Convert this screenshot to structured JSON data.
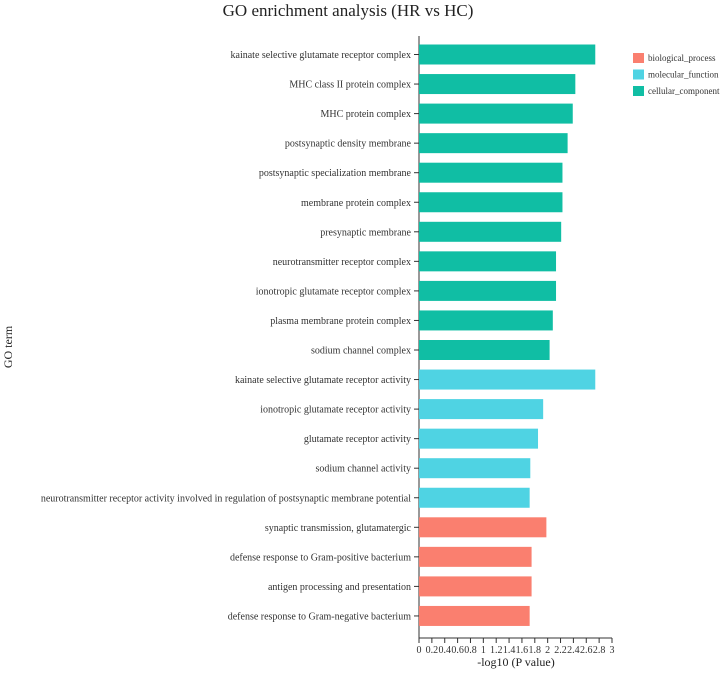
{
  "chart_data": {
    "type": "bar",
    "orientation": "horizontal",
    "title": "GO enrichment analysis (HR vs HC)",
    "xlabel": "-log10 (P value)",
    "ylabel": "GO term",
    "xlim": [
      0,
      3
    ],
    "xticks": [
      0,
      0.2,
      0.4,
      0.6,
      0.8,
      1,
      1.2,
      1.4,
      1.6,
      1.8,
      2,
      2.2,
      2.4,
      2.6,
      2.8,
      3
    ],
    "xtick_labels": [
      "0",
      "0.2",
      "0.4",
      "0.6",
      "0.8",
      "1",
      "1.2",
      "1.4",
      "1.6",
      "1.8",
      "2",
      "2.2",
      "2.4",
      "2.6",
      "2.8",
      "3"
    ],
    "grid": false,
    "legend_position": "top-right",
    "categories": [
      "kainate selective glutamate receptor complex",
      "MHC class II protein complex",
      "MHC protein complex",
      "postsynaptic density membrane",
      "postsynaptic specialization membrane",
      "membrane protein complex",
      "presynaptic membrane",
      "neurotransmitter receptor complex",
      "ionotropic glutamate receptor complex",
      "plasma membrane protein complex",
      "sodium channel complex",
      "kainate selective glutamate receptor activity",
      "ionotropic glutamate receptor activity",
      "glutamate receptor activity",
      "sodium channel activity",
      "neurotransmitter receptor activity involved in regulation of postsynaptic membrane potential",
      "synaptic transmission, glutamatergic",
      "defense response to Gram-positive bacterium",
      "antigen processing and presentation",
      "defense response to Gram-negative bacterium"
    ],
    "values": [
      2.74,
      2.43,
      2.39,
      2.31,
      2.23,
      2.23,
      2.21,
      2.13,
      2.13,
      2.08,
      2.03,
      2.74,
      1.93,
      1.85,
      1.73,
      1.72,
      1.98,
      1.75,
      1.75,
      1.72
    ],
    "groups": [
      "cellular_component",
      "cellular_component",
      "cellular_component",
      "cellular_component",
      "cellular_component",
      "cellular_component",
      "cellular_component",
      "cellular_component",
      "cellular_component",
      "cellular_component",
      "cellular_component",
      "molecular_function",
      "molecular_function",
      "molecular_function",
      "molecular_function",
      "molecular_function",
      "biological_process",
      "biological_process",
      "biological_process",
      "biological_process"
    ],
    "legend": [
      {
        "name": "biological_process",
        "color": "#fa7f6f"
      },
      {
        "name": "molecular_function",
        "color": "#4fd3e3"
      },
      {
        "name": "cellular_component",
        "color": "#10bea4"
      }
    ]
  }
}
